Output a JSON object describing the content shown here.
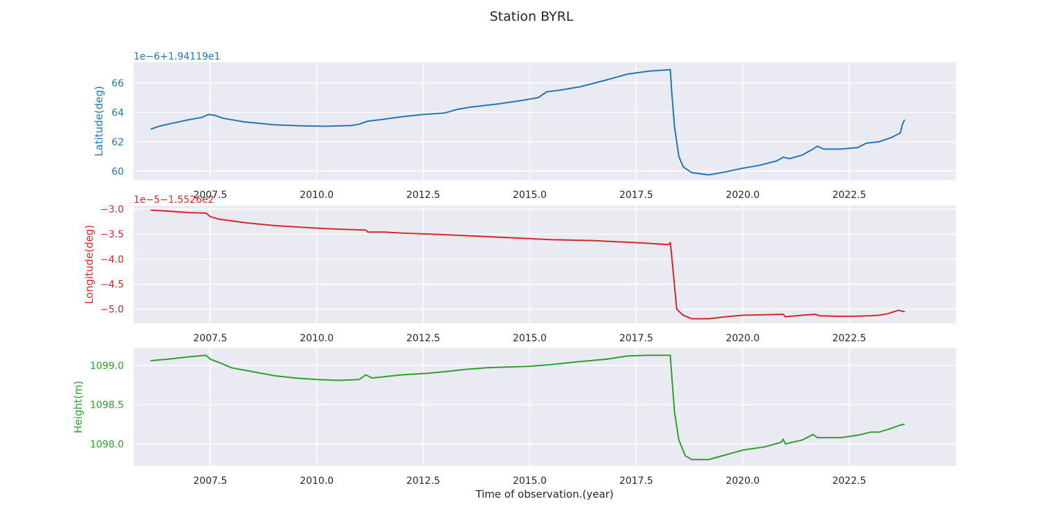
{
  "figure": {
    "title": "Station BYRL"
  },
  "chart_data": [
    {
      "type": "line",
      "ylabel": "Latitude(deg)",
      "offset_label": "1e−6+1.94119e1",
      "color": "#1f77b4",
      "xlim": [
        2005.7,
        2025.0
      ],
      "ylim": [
        59.4,
        67.4
      ],
      "x_ticks": [
        2007.5,
        2010.0,
        2012.5,
        2015.0,
        2017.5,
        2020.0,
        2022.5
      ],
      "x_tick_labels": [
        "2007.5",
        "2010.0",
        "2012.5",
        "2015.0",
        "2017.5",
        "2020.0",
        "2022.5"
      ],
      "y_ticks": [
        60,
        62,
        64,
        66
      ],
      "y_tick_labels": [
        "60",
        "62",
        "64",
        "66"
      ],
      "series": [
        {
          "x": [
            2006.1,
            2006.3,
            2006.6,
            2007.0,
            2007.3,
            2007.45,
            2007.6,
            2007.8,
            2008.3,
            2009.0,
            2009.6,
            2010.2,
            2010.8,
            2011.0,
            2011.2,
            2011.5,
            2012.0,
            2012.5,
            2013.0,
            2013.3,
            2013.6,
            2014.2,
            2014.8,
            2015.2,
            2015.4,
            2015.7,
            2016.2,
            2016.8,
            2017.3,
            2017.8,
            2018.3,
            2018.33,
            2018.4,
            2018.5,
            2018.6,
            2018.8,
            2019.2,
            2019.6,
            2020.0,
            2020.4,
            2020.8,
            2020.95,
            2021.1,
            2021.4,
            2021.65,
            2021.75,
            2021.9,
            2022.3,
            2022.7,
            2022.9,
            2023.2,
            2023.5,
            2023.7,
            2023.75,
            2023.8
          ],
          "y": [
            62.85,
            63.05,
            63.25,
            63.5,
            63.65,
            63.85,
            63.8,
            63.6,
            63.35,
            63.15,
            63.08,
            63.05,
            63.1,
            63.2,
            63.4,
            63.5,
            63.7,
            63.85,
            63.95,
            64.2,
            64.35,
            64.55,
            64.8,
            65.0,
            65.4,
            65.5,
            65.75,
            66.2,
            66.6,
            66.8,
            66.9,
            65.5,
            63.0,
            61.0,
            60.3,
            59.9,
            59.75,
            59.95,
            60.2,
            60.4,
            60.7,
            60.95,
            60.85,
            61.1,
            61.5,
            61.7,
            61.5,
            61.5,
            61.6,
            61.9,
            62.0,
            62.3,
            62.6,
            63.2,
            63.5
          ]
        }
      ]
    },
    {
      "type": "line",
      "ylabel": "Longitude(deg)",
      "offset_label": "1e−5−1.5526e2",
      "color": "#d62728",
      "xlim": [
        2005.7,
        2025.0
      ],
      "ylim": [
        -5.28,
        -2.93
      ],
      "x_ticks": [
        2007.5,
        2010.0,
        2012.5,
        2015.0,
        2017.5,
        2020.0,
        2022.5
      ],
      "x_tick_labels": [
        "2007.5",
        "2010.0",
        "2012.5",
        "2015.0",
        "2017.5",
        "2020.0",
        "2022.5"
      ],
      "y_ticks": [
        -3.0,
        -3.5,
        -4.0,
        -4.5,
        -5.0
      ],
      "y_tick_labels": [
        "−3.0",
        "−3.5",
        "−4.0",
        "−4.5",
        "−5.0"
      ],
      "series": [
        {
          "x": [
            2006.1,
            2006.5,
            2007.0,
            2007.4,
            2007.5,
            2007.7,
            2008.3,
            2009.0,
            2010.0,
            2010.5,
            2011.15,
            2011.2,
            2011.6,
            2012.0,
            2013.0,
            2014.0,
            2015.0,
            2015.5,
            2016.0,
            2016.5,
            2017.0,
            2017.5,
            2018.1,
            2018.25,
            2018.3,
            2018.35,
            2018.45,
            2018.6,
            2018.8,
            2019.2,
            2019.6,
            2020.0,
            2020.5,
            2020.95,
            2021.0,
            2021.4,
            2021.7,
            2021.8,
            2022.2,
            2022.6,
            2023.0,
            2023.2,
            2023.4,
            2023.65,
            2023.8
          ],
          "y": [
            -3.02,
            -3.04,
            -3.07,
            -3.08,
            -3.15,
            -3.2,
            -3.27,
            -3.33,
            -3.38,
            -3.4,
            -3.42,
            -3.46,
            -3.46,
            -3.48,
            -3.51,
            -3.55,
            -3.59,
            -3.61,
            -3.62,
            -3.63,
            -3.65,
            -3.67,
            -3.7,
            -3.71,
            -3.67,
            -4.1,
            -5.0,
            -5.12,
            -5.19,
            -5.19,
            -5.15,
            -5.12,
            -5.11,
            -5.1,
            -5.15,
            -5.12,
            -5.1,
            -5.13,
            -5.14,
            -5.14,
            -5.13,
            -5.12,
            -5.09,
            -5.02,
            -5.05
          ]
        }
      ]
    },
    {
      "type": "line",
      "ylabel": "Height(m)",
      "offset_label": "",
      "xlabel": "Time of observation.(year)",
      "color": "#2ca02c",
      "xlim": [
        2005.7,
        2025.0
      ],
      "ylim": [
        1097.72,
        1099.22
      ],
      "x_ticks": [
        2007.5,
        2010.0,
        2012.5,
        2015.0,
        2017.5,
        2020.0,
        2022.5
      ],
      "x_tick_labels": [
        "2007.5",
        "2010.0",
        "2012.5",
        "2015.0",
        "2017.5",
        "2020.0",
        "2022.5"
      ],
      "y_ticks": [
        1098.0,
        1098.5,
        1099.0
      ],
      "y_tick_labels": [
        "1098.0",
        "1098.5",
        "1099.0"
      ],
      "series": [
        {
          "x": [
            2006.1,
            2006.5,
            2007.0,
            2007.4,
            2007.5,
            2007.7,
            2008.0,
            2008.5,
            2009.0,
            2009.5,
            2010.0,
            2010.5,
            2011.0,
            2011.15,
            2011.3,
            2012.0,
            2012.6,
            2013.0,
            2013.5,
            2014.0,
            2015.0,
            2015.5,
            2016.0,
            2016.8,
            2017.3,
            2017.8,
            2018.3,
            2018.33,
            2018.4,
            2018.5,
            2018.65,
            2018.8,
            2019.2,
            2019.6,
            2020.0,
            2020.5,
            2020.9,
            2020.95,
            2021.0,
            2021.4,
            2021.65,
            2021.75,
            2021.9,
            2022.3,
            2022.7,
            2023.0,
            2023.2,
            2023.5,
            2023.7,
            2023.8
          ],
          "y": [
            1099.06,
            1099.08,
            1099.11,
            1099.13,
            1099.08,
            1099.04,
            1098.97,
            1098.92,
            1098.87,
            1098.84,
            1098.82,
            1098.81,
            1098.82,
            1098.88,
            1098.84,
            1098.88,
            1098.9,
            1098.92,
            1098.95,
            1098.97,
            1098.99,
            1099.01,
            1099.04,
            1099.08,
            1099.12,
            1099.13,
            1099.13,
            1098.9,
            1098.4,
            1098.05,
            1097.85,
            1097.8,
            1097.8,
            1097.86,
            1097.92,
            1097.96,
            1098.02,
            1098.06,
            1098.0,
            1098.05,
            1098.12,
            1098.08,
            1098.08,
            1098.08,
            1098.11,
            1098.15,
            1098.15,
            1098.2,
            1098.24,
            1098.25
          ]
        }
      ]
    }
  ]
}
